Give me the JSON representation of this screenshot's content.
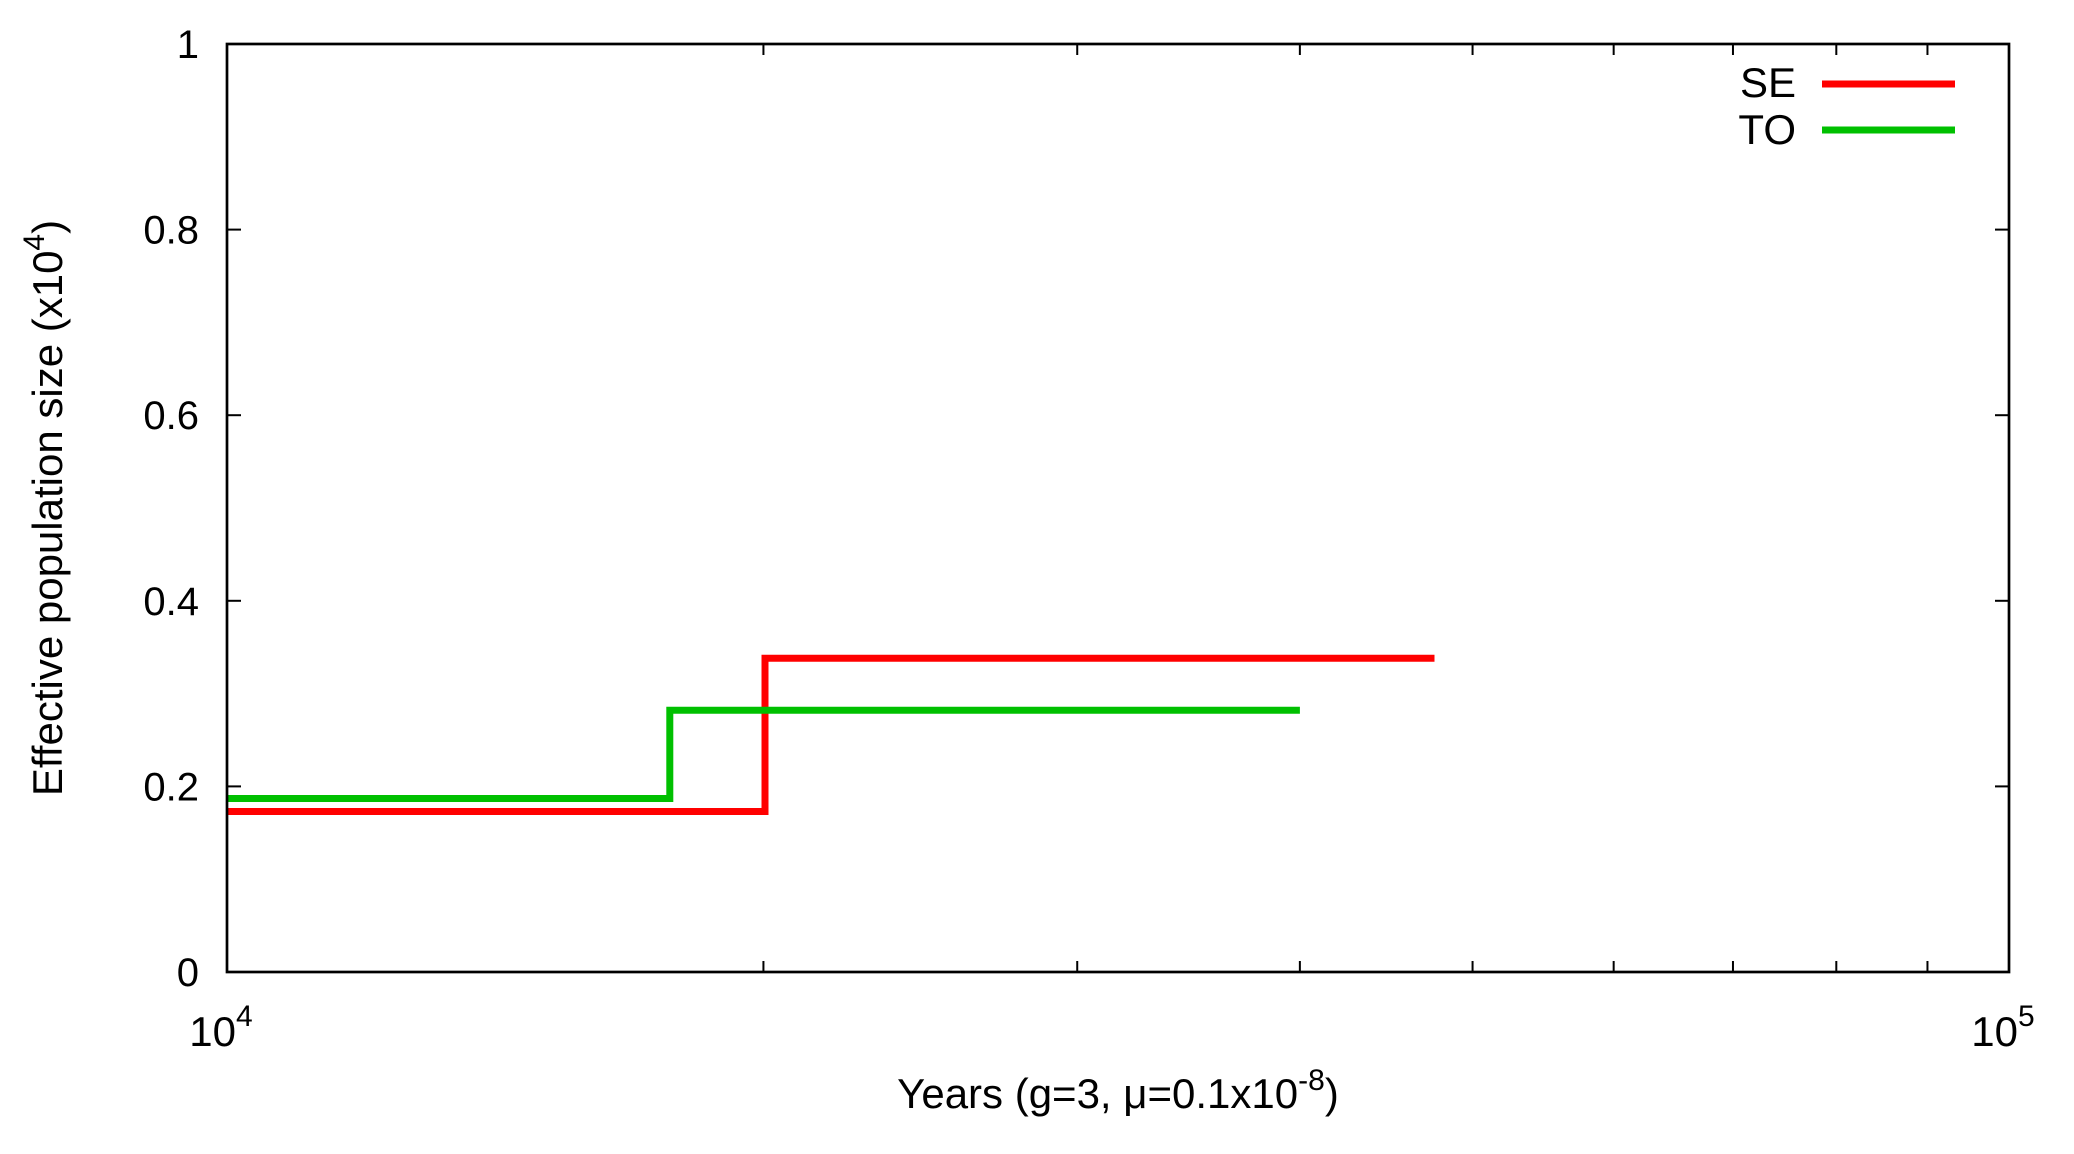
{
  "chart_data": {
    "type": "line",
    "step": true,
    "x_scale": "log",
    "xlim": [
      10000,
      100000
    ],
    "ylim": [
      0,
      1
    ],
    "x_ticks": [
      {
        "value": 10000,
        "base": "10",
        "exp": "4"
      },
      {
        "value": 100000,
        "base": "10",
        "exp": "5"
      }
    ],
    "y_ticks": [
      {
        "value": 0,
        "label": "0"
      },
      {
        "value": 0.2,
        "label": "0.2"
      },
      {
        "value": 0.4,
        "label": "0.4"
      },
      {
        "value": 0.6,
        "label": "0.6"
      },
      {
        "value": 0.8,
        "label": "0.8"
      },
      {
        "value": 1,
        "label": "1"
      }
    ],
    "xlabel": {
      "prefix": "Years (g=3, ",
      "mu": "μ",
      "mid": "=0.1x10",
      "sup": "-8",
      "suffix": ")"
    },
    "ylabel": {
      "text": "Effective population size (x10",
      "sup": "4",
      "suffix": ")"
    },
    "legend_position": "top-right",
    "grid": false,
    "series": [
      {
        "name": "SE",
        "color": "#ff0000",
        "points": [
          [
            10000,
            0.173
          ],
          [
            20040,
            0.173
          ],
          [
            20040,
            0.338
          ],
          [
            47600,
            0.338
          ]
        ]
      },
      {
        "name": "TO",
        "color": "#00c000",
        "points": [
          [
            10000,
            0.187
          ],
          [
            17720,
            0.187
          ],
          [
            17720,
            0.282
          ],
          [
            40000,
            0.282
          ]
        ]
      }
    ]
  }
}
